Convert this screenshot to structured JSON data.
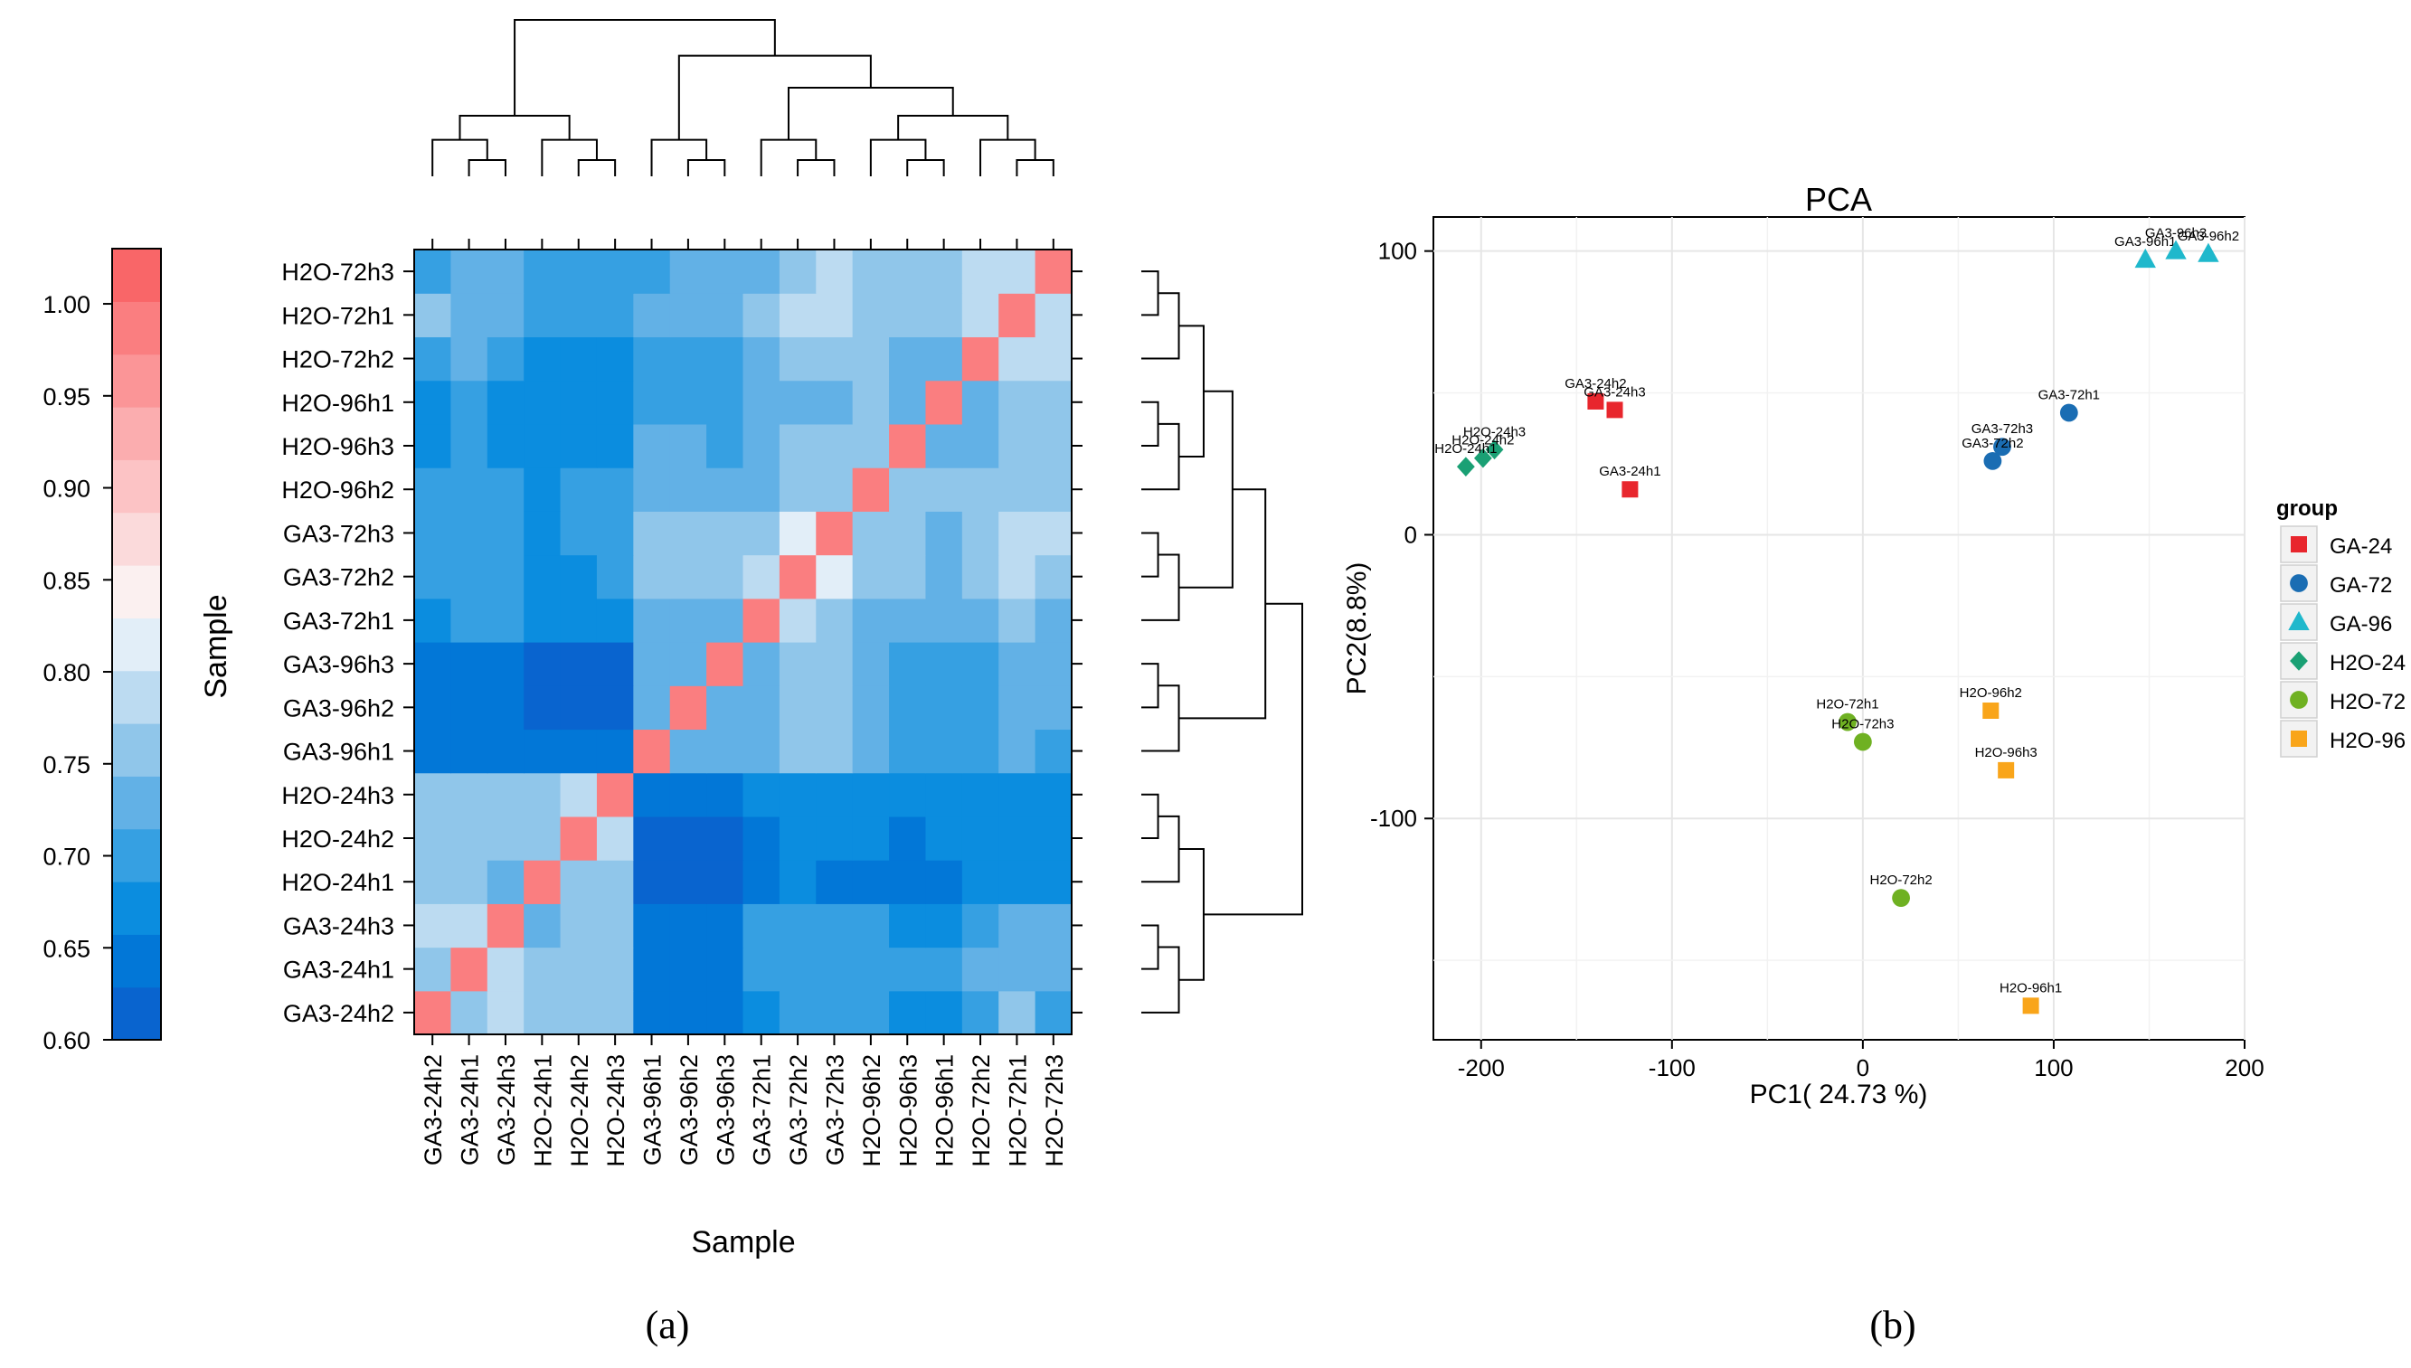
{
  "colors": {
    "scale": [
      "#0964cf",
      "#0277d7",
      "#0b8ddf",
      "#36a0e2",
      "#62b1e6",
      "#90c6ea",
      "#bcdbf1",
      "#e2eef8",
      "#fbf0f0",
      "#fbdadb",
      "#fcc3c5",
      "#fbadaf",
      "#fb9597",
      "#fa7e80",
      "#f96668"
    ],
    "GA-24": "#e8262d",
    "GA-72": "#1a6db3",
    "GA-96": "#1fb8cc",
    "H2O-24": "#1aa074",
    "H2O-72": "#6fb122",
    "H2O-96": "#f9a51a"
  },
  "chart_data": [
    {
      "type": "heatmap",
      "panel_label": "(a)",
      "xlabel": "Sample",
      "ylabel": "Sample",
      "x_categories": [
        "GA3-24h2",
        "GA3-24h1",
        "GA3-24h3",
        "H2O-24h1",
        "H2O-24h2",
        "H2O-24h3",
        "GA3-96h1",
        "GA3-96h2",
        "GA3-96h3",
        "GA3-72h1",
        "GA3-72h2",
        "GA3-72h3",
        "H2O-96h2",
        "H2O-96h3",
        "H2O-96h1",
        "H2O-72h2",
        "H2O-72h1",
        "H2O-72h3"
      ],
      "y_categories": [
        "GA3-24h2",
        "GA3-24h1",
        "GA3-24h3",
        "H2O-24h1",
        "H2O-24h2",
        "H2O-24h3",
        "GA3-96h1",
        "GA3-96h2",
        "GA3-96h3",
        "GA3-72h1",
        "GA3-72h2",
        "GA3-72h3",
        "H2O-96h2",
        "H2O-96h3",
        "H2O-96h1",
        "H2O-72h2",
        "H2O-72h1",
        "H2O-72h3"
      ],
      "colorbar": {
        "range": [
          0.6,
          1.03
        ],
        "ticks": [
          "0.60",
          "0.65",
          "0.70",
          "0.75",
          "0.80",
          "0.85",
          "0.90",
          "0.95",
          "1.00"
        ]
      },
      "values": [
        [
          1.0,
          0.76,
          0.79,
          0.75,
          0.75,
          0.75,
          0.64,
          0.64,
          0.64,
          0.68,
          0.7,
          0.7,
          0.7,
          0.68,
          0.68,
          0.7,
          0.75,
          0.7
        ],
        [
          0.76,
          1.0,
          0.79,
          0.75,
          0.75,
          0.75,
          0.64,
          0.64,
          0.64,
          0.7,
          0.7,
          0.7,
          0.7,
          0.7,
          0.7,
          0.72,
          0.72,
          0.72
        ],
        [
          0.79,
          0.79,
          1.0,
          0.72,
          0.75,
          0.75,
          0.64,
          0.64,
          0.64,
          0.7,
          0.7,
          0.7,
          0.7,
          0.68,
          0.68,
          0.7,
          0.72,
          0.72
        ],
        [
          0.75,
          0.75,
          0.72,
          1.0,
          0.75,
          0.75,
          0.62,
          0.62,
          0.61,
          0.64,
          0.68,
          0.64,
          0.64,
          0.64,
          0.64,
          0.66,
          0.68,
          0.68
        ],
        [
          0.75,
          0.75,
          0.75,
          0.75,
          1.0,
          0.78,
          0.62,
          0.62,
          0.62,
          0.64,
          0.66,
          0.66,
          0.66,
          0.64,
          0.66,
          0.66,
          0.68,
          0.68
        ],
        [
          0.75,
          0.75,
          0.75,
          0.75,
          0.78,
          1.0,
          0.63,
          0.63,
          0.63,
          0.66,
          0.66,
          0.66,
          0.66,
          0.66,
          0.66,
          0.66,
          0.68,
          0.68
        ],
        [
          0.64,
          0.64,
          0.64,
          0.64,
          0.64,
          0.64,
          1.0,
          0.72,
          0.72,
          0.72,
          0.76,
          0.76,
          0.72,
          0.7,
          0.7,
          0.7,
          0.72,
          0.7
        ],
        [
          0.64,
          0.64,
          0.64,
          0.62,
          0.62,
          0.62,
          0.72,
          1.0,
          0.72,
          0.72,
          0.76,
          0.76,
          0.72,
          0.7,
          0.7,
          0.7,
          0.72,
          0.72
        ],
        [
          0.64,
          0.64,
          0.64,
          0.61,
          0.62,
          0.62,
          0.72,
          0.72,
          1.0,
          0.72,
          0.76,
          0.76,
          0.72,
          0.7,
          0.7,
          0.7,
          0.72,
          0.72
        ],
        [
          0.67,
          0.7,
          0.7,
          0.66,
          0.66,
          0.68,
          0.72,
          0.72,
          0.72,
          1.0,
          0.79,
          0.76,
          0.72,
          0.72,
          0.72,
          0.72,
          0.75,
          0.72
        ],
        [
          0.7,
          0.7,
          0.7,
          0.68,
          0.68,
          0.7,
          0.76,
          0.76,
          0.76,
          0.79,
          1.0,
          0.82,
          0.76,
          0.76,
          0.72,
          0.76,
          0.79,
          0.76
        ],
        [
          0.7,
          0.7,
          0.7,
          0.68,
          0.7,
          0.7,
          0.76,
          0.76,
          0.76,
          0.76,
          0.82,
          1.0,
          0.76,
          0.76,
          0.72,
          0.76,
          0.79,
          0.79
        ],
        [
          0.7,
          0.7,
          0.7,
          0.68,
          0.7,
          0.7,
          0.72,
          0.72,
          0.72,
          0.72,
          0.76,
          0.76,
          1.0,
          0.76,
          0.76,
          0.76,
          0.76,
          0.76
        ],
        [
          0.68,
          0.7,
          0.68,
          0.66,
          0.66,
          0.68,
          0.72,
          0.72,
          0.7,
          0.72,
          0.76,
          0.76,
          0.76,
          1.0,
          0.72,
          0.72,
          0.76,
          0.76
        ],
        [
          0.68,
          0.7,
          0.68,
          0.66,
          0.68,
          0.68,
          0.7,
          0.7,
          0.7,
          0.72,
          0.72,
          0.72,
          0.76,
          0.72,
          1.0,
          0.72,
          0.76,
          0.76
        ],
        [
          0.7,
          0.72,
          0.7,
          0.68,
          0.68,
          0.68,
          0.7,
          0.7,
          0.7,
          0.72,
          0.76,
          0.76,
          0.76,
          0.72,
          0.72,
          1.0,
          0.79,
          0.79
        ],
        [
          0.75,
          0.72,
          0.72,
          0.7,
          0.7,
          0.7,
          0.72,
          0.72,
          0.72,
          0.76,
          0.79,
          0.79,
          0.76,
          0.76,
          0.76,
          0.79,
          1.0,
          0.79
        ],
        [
          0.7,
          0.72,
          0.72,
          0.7,
          0.7,
          0.7,
          0.7,
          0.72,
          0.72,
          0.72,
          0.76,
          0.79,
          0.76,
          0.76,
          0.76,
          0.79,
          0.79,
          1.0
        ]
      ]
    },
    {
      "type": "scatter",
      "panel_label": "(b)",
      "title": "PCA",
      "xlabel": "PC1( 24.73 %)",
      "ylabel": "PC2(8.8%)",
      "xlim": [
        -225,
        200
      ],
      "ylim": [
        -178,
        112
      ],
      "xticks": [
        -200,
        -100,
        0,
        100,
        200
      ],
      "yticks": [
        -100,
        0,
        100
      ],
      "legend_title": "group",
      "legend_position": "right",
      "grid": true,
      "series": [
        {
          "name": "GA-24",
          "shape": "square",
          "points": [
            {
              "label": "GA3-24h2",
              "x": -140,
              "y": 47
            },
            {
              "label": "GA3-24h3",
              "x": -130,
              "y": 44
            },
            {
              "label": "GA3-24h1",
              "x": -122,
              "y": 16
            }
          ]
        },
        {
          "name": "GA-72",
          "shape": "circle",
          "points": [
            {
              "label": "GA3-72h1",
              "x": 108,
              "y": 43
            },
            {
              "label": "GA3-72h3",
              "x": 73,
              "y": 31
            },
            {
              "label": "GA3-72h2",
              "x": 68,
              "y": 26
            }
          ]
        },
        {
          "name": "GA-96",
          "shape": "triangle",
          "points": [
            {
              "label": "GA3-96h1",
              "x": 148,
              "y": 97
            },
            {
              "label": "GA3-96h3",
              "x": 164,
              "y": 100
            },
            {
              "label": "GA3-96h2",
              "x": 181,
              "y": 99
            }
          ]
        },
        {
          "name": "H2O-24",
          "shape": "diamond",
          "points": [
            {
              "label": "H2O-24h3",
              "x": -193,
              "y": 30
            },
            {
              "label": "H2O-24h2",
              "x": -199,
              "y": 27
            },
            {
              "label": "H2O-24h1",
              "x": -208,
              "y": 24
            }
          ]
        },
        {
          "name": "H2O-72",
          "shape": "circle",
          "points": [
            {
              "label": "H2O-72h1",
              "x": -8,
              "y": -66
            },
            {
              "label": "H2O-72h3",
              "x": 0,
              "y": -73
            },
            {
              "label": "H2O-72h2",
              "x": 20,
              "y": -128
            }
          ]
        },
        {
          "name": "H2O-96",
          "shape": "square",
          "points": [
            {
              "label": "H2O-96h2",
              "x": 67,
              "y": -62
            },
            {
              "label": "H2O-96h3",
              "x": 75,
              "y": -83
            },
            {
              "label": "H2O-96h1",
              "x": 88,
              "y": -166
            }
          ]
        }
      ]
    }
  ]
}
